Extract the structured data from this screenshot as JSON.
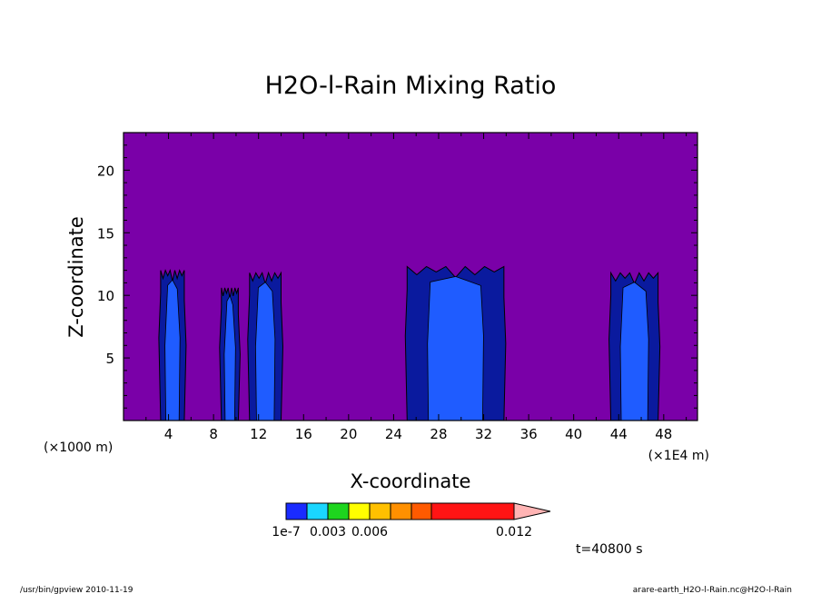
{
  "chart_data": {
    "type": "heatmap",
    "title": "H2O-l-Rain Mixing Ratio",
    "xlabel": "X-coordinate",
    "ylabel": "Z-coordinate",
    "x_left_note": "(×1000 m)",
    "x_right_note": "(×1E4 m)",
    "xlim": [
      0,
      51
    ],
    "ylim": [
      0,
      23
    ],
    "x_ticks": [
      4,
      8,
      12,
      16,
      20,
      24,
      28,
      32,
      36,
      40,
      44,
      48
    ],
    "y_ticks": [
      5,
      10,
      15,
      20
    ],
    "background_color": "#7a00a8",
    "cloud_cores": [
      {
        "x_min": 3.3,
        "x_max": 5.4,
        "z_top": 12.0
      },
      {
        "x_min": 8.7,
        "x_max": 10.2,
        "z_top": 10.6
      },
      {
        "x_min": 11.2,
        "x_max": 14.0,
        "z_top": 11.8
      },
      {
        "x_min": 25.2,
        "x_max": 33.8,
        "z_top": 12.3
      },
      {
        "x_min": 43.3,
        "x_max": 47.5,
        "z_top": 11.8
      }
    ],
    "colorbar": {
      "colors": [
        "#1a2bff",
        "#1ad6ff",
        "#1ed51e",
        "#ffff00",
        "#ffc000",
        "#ff9000",
        "#ff5a00",
        "#ff1414",
        "#ff7878",
        "#ffb4b4"
      ],
      "tick_labels": [
        "1e-7",
        "0.003",
        "0.006",
        "0.012"
      ]
    },
    "time_label": "t=40800 s"
  },
  "footer": {
    "left": "/usr/bin/gpview  2010-11-19",
    "right": "arare-earth_H2O-l-Rain.nc@H2O-l-Rain"
  },
  "colors": {
    "region_dark": "#0a1a9e",
    "region_mid": "#1a2ed6",
    "region_light": "#1f5cff"
  }
}
